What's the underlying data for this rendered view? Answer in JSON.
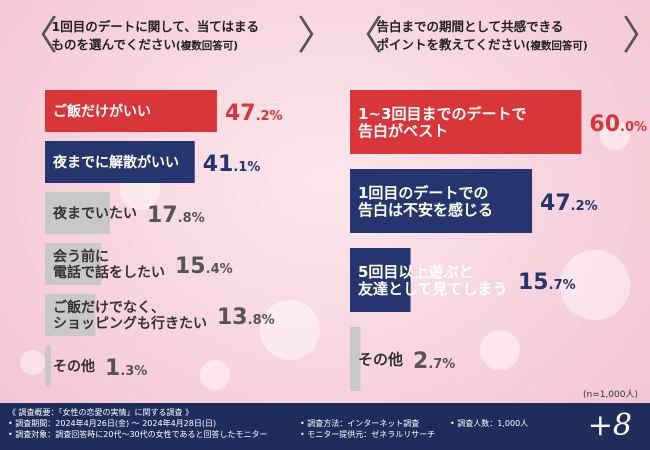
{
  "left_question": {
    "line1": "1回目のデートに関して、当てはまる",
    "line2": "ものを選んでください",
    "note": "(複数回答可)"
  },
  "right_question": {
    "line1": "告白までの期間として共感できる",
    "line2": "ポイントを教えてください",
    "note": "(複数回答可)"
  },
  "chart_data": [
    {
      "type": "bar",
      "categories": [
        [
          "ご飯だけがいい"
        ],
        [
          "夜までに解散がいい"
        ],
        [
          "夜までいたい"
        ],
        [
          "会う前に",
          "電話で話をしたい"
        ],
        [
          "ご飯だけでなく、",
          "ショッピングも行きたい"
        ],
        [
          "その他"
        ]
      ],
      "values": [
        47.2,
        41.1,
        17.8,
        15.4,
        13.8,
        1.3
      ],
      "value_int": [
        "47",
        "41",
        "17",
        "15",
        "13",
        "1"
      ],
      "value_dec": [
        ".2%",
        ".1%",
        ".8%",
        ".4%",
        ".8%",
        ".3%"
      ],
      "colors": [
        "#d9363a",
        "#25356e",
        "#c8c8c8",
        "#c8c8c8",
        "#c8c8c8",
        "#c8c8c8"
      ],
      "text_colors": [
        "#ffffff",
        "#ffffff",
        "#333333",
        "#333333",
        "#333333",
        "#333333"
      ],
      "pct_colors": [
        "#d9363a",
        "#25356e",
        "#555555",
        "#555555",
        "#555555",
        "#555555"
      ],
      "xlim": [
        0,
        70
      ]
    },
    {
      "type": "bar",
      "categories": [
        [
          "1~3回目までのデートで",
          "告白がベスト"
        ],
        [
          "1回目のデートでの",
          "告白は不安を感じる"
        ],
        [
          "5回目以上遊ぶと",
          "友達として見てしまう"
        ],
        [
          "その他"
        ]
      ],
      "values": [
        60.0,
        47.2,
        15.7,
        2.7
      ],
      "value_int": [
        "60",
        "47",
        "15",
        "2"
      ],
      "value_dec": [
        ".0%",
        ".2%",
        ".7%",
        ".7%"
      ],
      "colors": [
        "#d9363a",
        "#25356e",
        "#25356e",
        "#c8c8c8"
      ],
      "text_colors": [
        "#ffffff",
        "#ffffff",
        "#ffffff",
        "#333333"
      ],
      "pct_colors": [
        "#d9363a",
        "#25356e",
        "#25356e",
        "#555555"
      ],
      "xlim": [
        0,
        70
      ]
    }
  ],
  "n_note": "(n=1,000人)",
  "footer": {
    "title": "《 調査概要：「女性の恋愛の実情」に関する調査 》",
    "period": "• 調査期間：2024年4月26日(金) ～ 2024年4月28日(日)",
    "target": "• 調査対象：調査回答時に20代～30代の女性であると回答したモニター",
    "method": "• 調査方法：インターネット調査",
    "count": "• 調査人数：1,000人",
    "provider": "• モニター提供元：ゼネラルリサーチ",
    "logo": "+8"
  }
}
